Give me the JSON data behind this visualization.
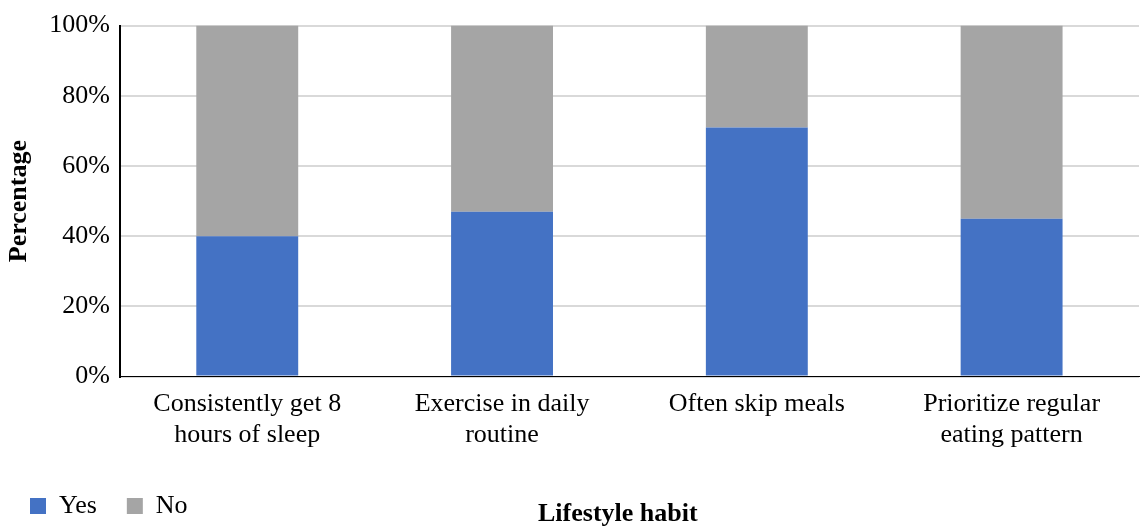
{
  "chart_data": {
    "type": "bar",
    "stacked": true,
    "xlabel": "Lifestyle habit",
    "ylabel": "Percentage",
    "categories": [
      [
        "Consistently get 8",
        "hours of sleep"
      ],
      [
        "Exercise in daily",
        "routine"
      ],
      "Often skip meals",
      [
        "Prioritize regular",
        "eating pattern"
      ]
    ],
    "series": [
      {
        "name": "Yes",
        "color": "#4472c4",
        "values": [
          40,
          47,
          71,
          45
        ]
      },
      {
        "name": "No",
        "color": "#a5a5a5",
        "values": [
          60,
          53,
          29,
          55
        ]
      }
    ],
    "ylim": [
      0,
      100
    ],
    "yticks": [
      {
        "value": 0,
        "label": "0%"
      },
      {
        "value": 20,
        "label": "20%"
      },
      {
        "value": 40,
        "label": "40%"
      },
      {
        "value": 60,
        "label": "60%"
      },
      {
        "value": 80,
        "label": "80%"
      },
      {
        "value": 100,
        "label": "100%"
      }
    ],
    "grid": "y",
    "legend": "bottom left"
  }
}
